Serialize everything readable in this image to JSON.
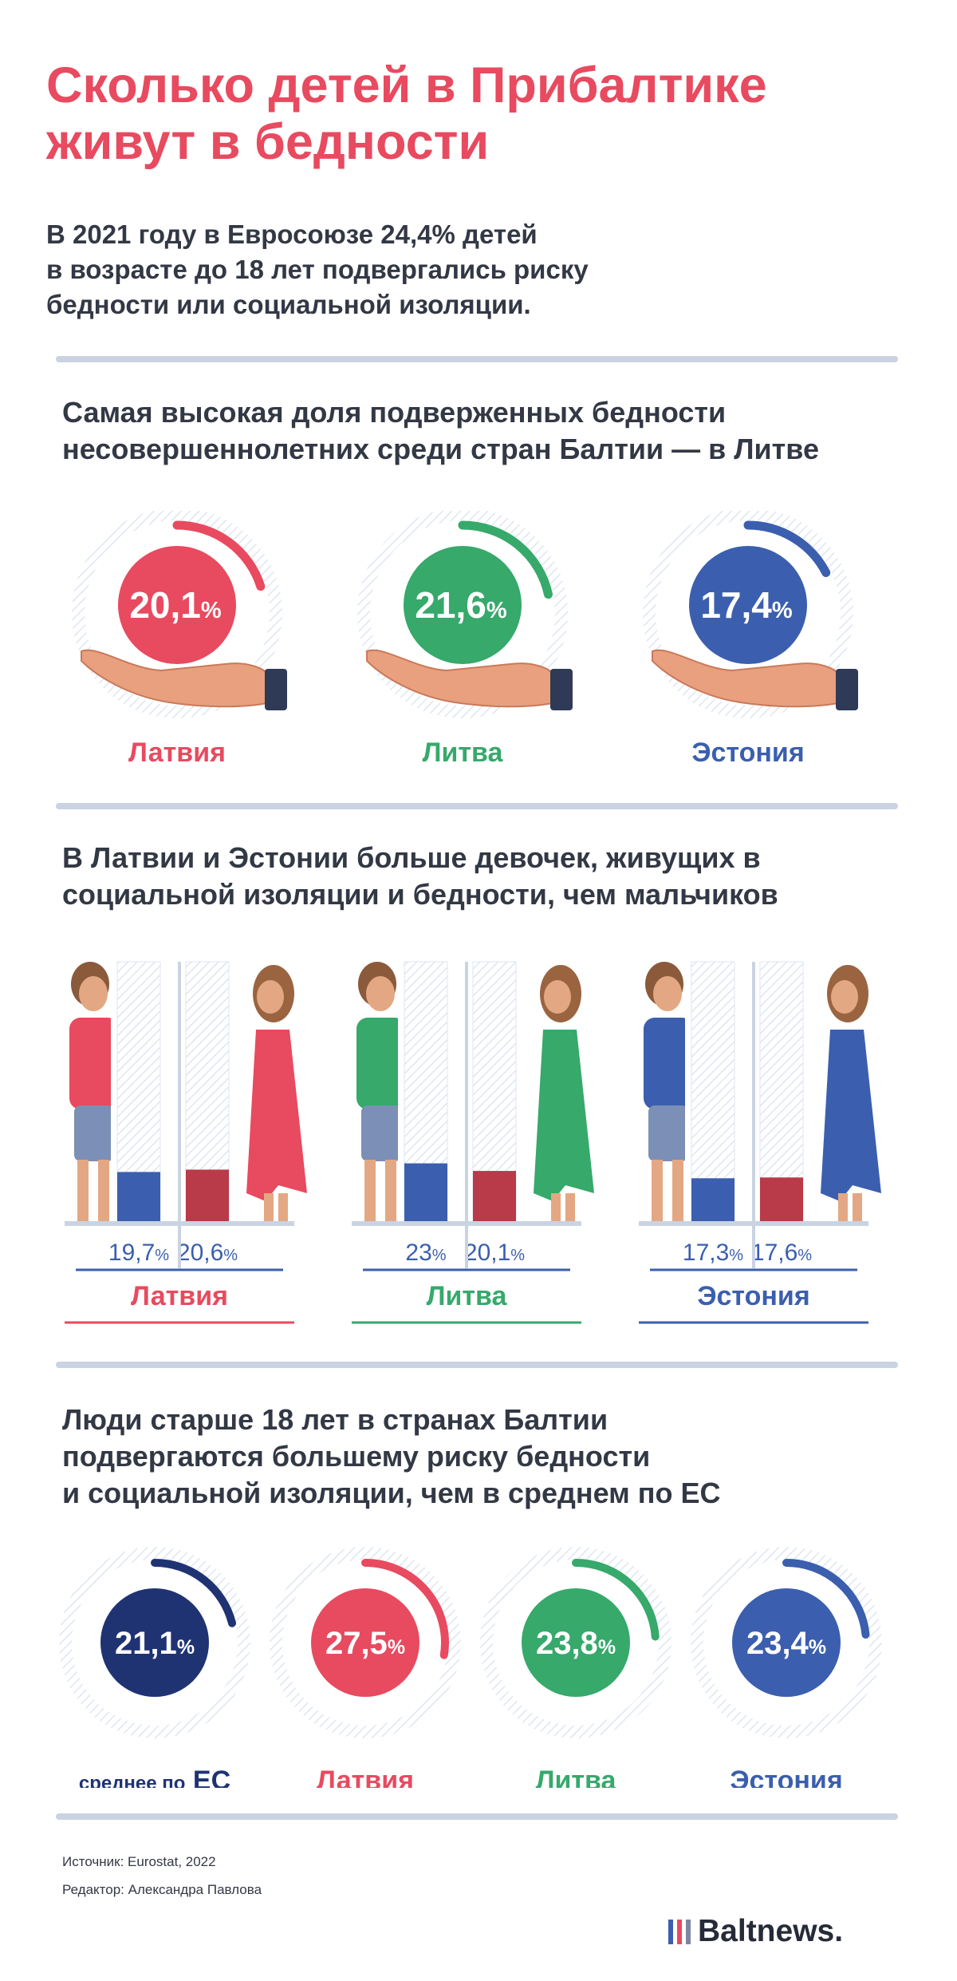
{
  "header": {
    "title_line1": "Сколько детей в Прибалтике",
    "title_line2": "живут в бедности",
    "intro_line1": "В 2021 году в Евросоюзе 24,4% детей",
    "intro_line2": "в возрасте до 18 лет подвергались риску",
    "intro_line3": "бедности или социальной изоляции."
  },
  "colors": {
    "latvia": "#e84a5f",
    "lithuania": "#36a96b",
    "estonia": "#3b5fae",
    "eu": "#1f3373",
    "text": "#333845",
    "separator": "#c9d3e2"
  },
  "section1": {
    "heading_line1": "Самая высокая доля подверженных бедности",
    "heading_line2": "несовершеннолетних среди стран Балтии — в Литве"
  },
  "section2": {
    "heading_line1": "В Латвии и Эстонии больше девочек, живущих в",
    "heading_line2": "социальной изоляции и бедности, чем мальчиков"
  },
  "section3": {
    "heading_line1": "Люди старше 18 лет в странах Балтии",
    "heading_line2": "подвергаются большему риску бедности",
    "heading_line3": "и социальной изоляции, чем в среднем по ЕС"
  },
  "footer": {
    "source": "Источник: Eurostat, 2022",
    "editor": "Редактор: Александра Павлова",
    "logo": "Baltnews."
  },
  "chart_data": [
    {
      "type": "pie",
      "categories": [
        "Латвия",
        "Литва",
        "Эстония"
      ],
      "values": [
        20.1,
        21.6,
        17.4
      ],
      "value_labels": [
        "20,1",
        "21,6",
        "17,4"
      ],
      "unit": "%",
      "colors": [
        "#e84a5f",
        "#36a96b",
        "#3b5fae"
      ]
    },
    {
      "type": "bar",
      "categories": [
        "Латвия",
        "Литва",
        "Эстония"
      ],
      "series": [
        {
          "values": [
            19.7,
            23,
            17.3
          ],
          "labels": [
            "19,7",
            "23",
            "17,3"
          ],
          "color": "#3b5fae"
        },
        {
          "values": [
            20.6,
            20.1,
            17.6
          ],
          "labels": [
            "20,6",
            "20,1",
            "17,6"
          ],
          "color": "#b93a49"
        }
      ],
      "unit": "%",
      "ylim": [
        0,
        100
      ],
      "category_colors": [
        "#e84a5f",
        "#36a96b",
        "#3b5fae"
      ]
    },
    {
      "type": "pie",
      "categories": [
        "среднее по",
        "Латвия",
        "Литва",
        "Эстония"
      ],
      "category_suffix": [
        "ЕС",
        "",
        "",
        ""
      ],
      "values": [
        21.1,
        27.5,
        23.8,
        23.4
      ],
      "value_labels": [
        "21,1",
        "27,5",
        "23,8",
        "23,4"
      ],
      "unit": "%",
      "colors": [
        "#1f3373",
        "#e84a5f",
        "#36a96b",
        "#3b5fae"
      ]
    }
  ]
}
